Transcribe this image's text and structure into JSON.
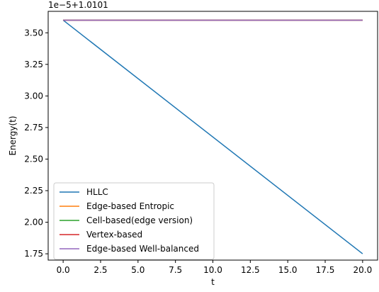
{
  "chart_data": {
    "type": "line",
    "offset_label": "1e−5+1.0101",
    "xlabel": "t",
    "ylabel": "Energy(t)",
    "xlim": [
      -1.0,
      21.0
    ],
    "ylim": [
      1.7,
      3.67
    ],
    "xticks": [
      0.0,
      2.5,
      5.0,
      7.5,
      10.0,
      12.5,
      15.0,
      17.5,
      20.0
    ],
    "xtick_labels": [
      "0.0",
      "2.5",
      "5.0",
      "7.5",
      "10.0",
      "12.5",
      "15.0",
      "17.5",
      "20.0"
    ],
    "yticks": [
      1.75,
      2.0,
      2.25,
      2.5,
      2.75,
      3.0,
      3.25,
      3.5
    ],
    "ytick_labels": [
      "1.75",
      "2.00",
      "2.25",
      "2.50",
      "2.75",
      "3.00",
      "3.25",
      "3.50"
    ],
    "grid": false,
    "legend_position": "lower-left",
    "series": [
      {
        "name": "HLLC",
        "color": "#1f77b4",
        "x": [
          0,
          20
        ],
        "y": [
          3.6,
          1.75
        ]
      },
      {
        "name": "Edge-based Entropic",
        "color": "#ff7f0e",
        "x": [
          0,
          20
        ],
        "y": [
          3.6,
          3.6
        ]
      },
      {
        "name": "Cell-based(edge version)",
        "color": "#2ca02c",
        "x": [
          0,
          20
        ],
        "y": [
          3.6,
          3.6
        ]
      },
      {
        "name": "Vertex-based",
        "color": "#d62728",
        "x": [
          0,
          20
        ],
        "y": [
          3.6,
          3.6
        ]
      },
      {
        "name": "Edge-based Well-balanced",
        "color": "#9467bd",
        "x": [
          0,
          20
        ],
        "y": [
          3.6,
          3.6
        ]
      }
    ]
  }
}
